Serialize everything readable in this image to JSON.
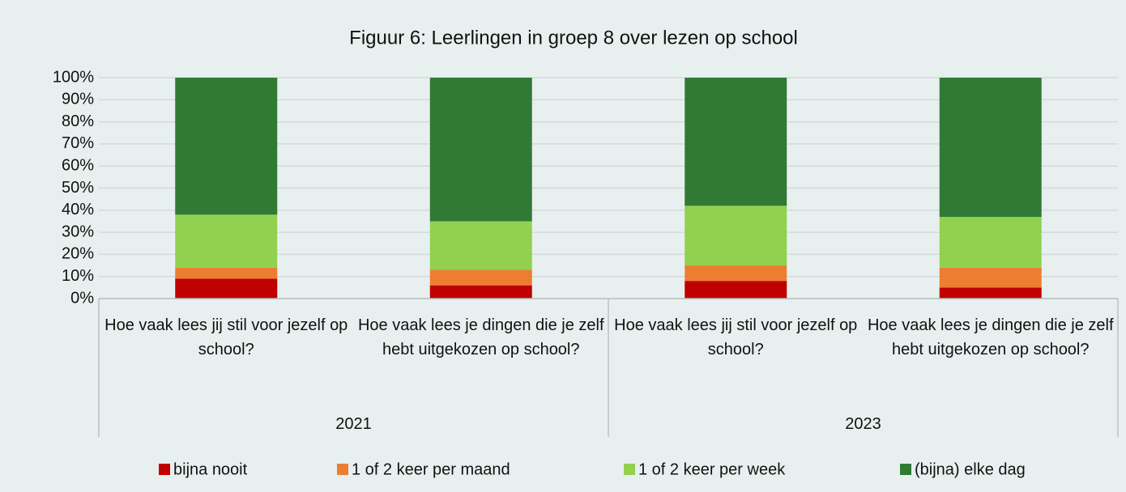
{
  "chart_data": {
    "type": "stacked_bar",
    "title": "Figuur 6: Leerlingen in groep 8 over lezen op school",
    "categories": [
      "Hoe vaak lees jij stil voor jezelf op school?",
      "Hoe vaak lees je dingen die je zelf hebt uitgekozen op school?",
      "Hoe vaak lees jij stil voor jezelf op school?",
      "Hoe vaak lees je dingen die je zelf hebt uitgekozen op school?"
    ],
    "group_labels": [
      "2021",
      "2023"
    ],
    "series": [
      {
        "name": "bijna nooit",
        "color": "#c00000",
        "values": [
          9,
          6,
          8,
          5
        ]
      },
      {
        "name": "1 of 2 keer per maand",
        "color": "#ed7d31",
        "values": [
          5,
          7,
          7,
          9
        ]
      },
      {
        "name": "1 of 2 keer per week",
        "color": "#92d050",
        "values": [
          24,
          22,
          27,
          23
        ]
      },
      {
        "name": "(bijna) elke dag",
        "color": "#317a35",
        "values": [
          62,
          65,
          58,
          63
        ]
      }
    ],
    "ylim": [
      0,
      100
    ],
    "yticks": [
      {
        "value": 0,
        "label": "0%"
      },
      {
        "value": 10,
        "label": "10%"
      },
      {
        "value": 20,
        "label": "20%"
      },
      {
        "value": 30,
        "label": "30%"
      },
      {
        "value": 40,
        "label": "40%"
      },
      {
        "value": 50,
        "label": "50%"
      },
      {
        "value": 60,
        "label": "60%"
      },
      {
        "value": 70,
        "label": "70%"
      },
      {
        "value": 80,
        "label": "80%"
      },
      {
        "value": 90,
        "label": "90%"
      },
      {
        "value": 100,
        "label": "100%"
      }
    ],
    "grid": true,
    "legend": "bottom"
  }
}
